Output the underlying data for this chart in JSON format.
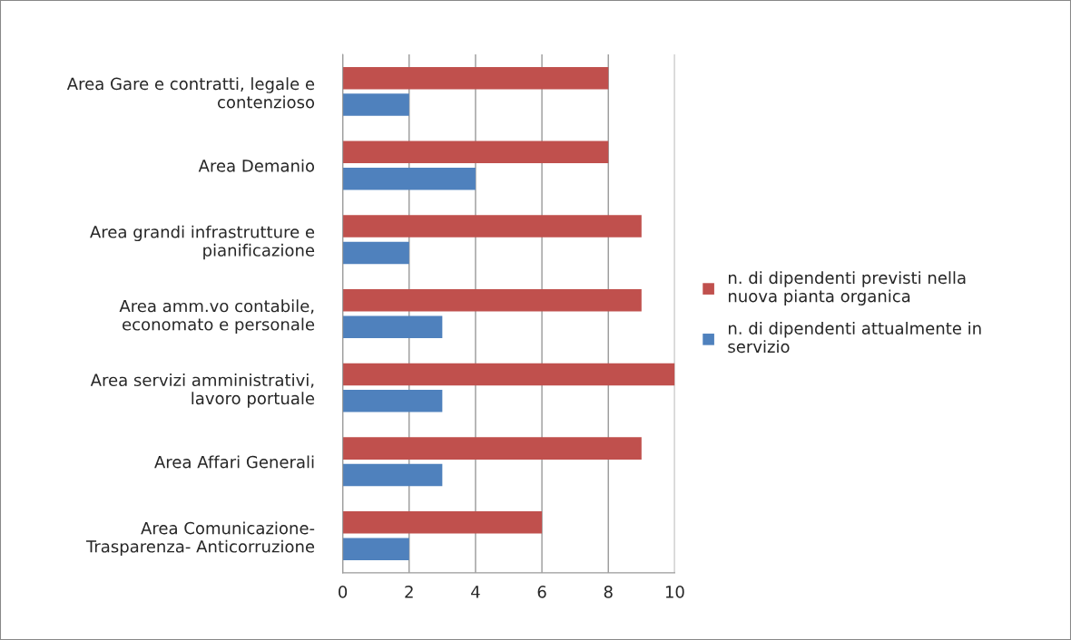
{
  "chart_data": {
    "type": "bar",
    "orientation": "horizontal",
    "categories": [
      "Area Gare e contratti, legale e\ncontenzioso",
      "Area Demanio",
      "Area grandi infrastrutture e\npianificazione",
      "Area amm.vo contabile,\neconomato e personale",
      "Area servizi amministrativi,\nlavoro portuale",
      "Area Affari Generali",
      "Area Comunicazione-\nTrasparenza- Anticorruzione"
    ],
    "series": [
      {
        "name": "n. di dipendenti previsti nella\nnuova pianta organica",
        "color": "#c0504d",
        "values": [
          8,
          8,
          9,
          9,
          10,
          9,
          6
        ]
      },
      {
        "name": "n. di dipendenti attualmente in\nservizio",
        "color": "#4f81bd",
        "values": [
          2,
          4,
          2,
          3,
          3,
          3,
          2
        ]
      }
    ],
    "xlim": [
      0,
      10
    ],
    "xticks": [
      0,
      2,
      4,
      6,
      8,
      10
    ],
    "grid": "x",
    "legend": "right"
  }
}
